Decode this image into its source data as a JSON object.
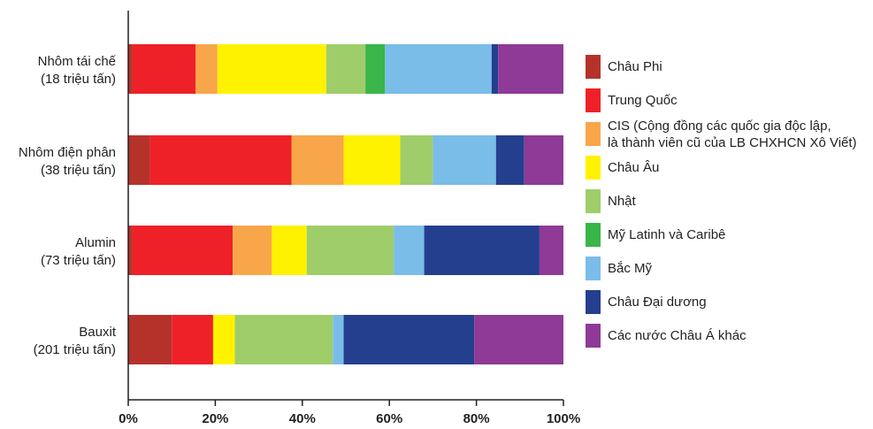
{
  "chart_data": {
    "type": "bar",
    "orientation": "horizontal",
    "stacked": true,
    "categories": [
      [
        "Nhôm tái chế",
        "(18 triệu tấn)"
      ],
      [
        "Nhôm điện phân",
        "(38 triệu tấn)"
      ],
      [
        "Alumin",
        "(73 triệu tấn)"
      ],
      [
        "Bauxit",
        "(201 triệu tấn)"
      ]
    ],
    "series": [
      {
        "name": "Châu Phi",
        "color": "#b5322b",
        "values": [
          1,
          5,
          1,
          10
        ]
      },
      {
        "name": "Trung Quốc",
        "color": "#ee2128",
        "values": [
          14.5,
          32.5,
          23,
          9.5
        ]
      },
      {
        "name": "CIS (Cộng đồng các quốc gia độc lập,\nlà thành viên cũ của LB CHXHCN Xô Viết)",
        "color": "#f9a64a",
        "values": [
          5,
          12,
          9,
          0
        ]
      },
      {
        "name": "Châu Âu",
        "color": "#fff200",
        "values": [
          25,
          13,
          8,
          5
        ]
      },
      {
        "name": "Nhật",
        "color": "#9fcd6a",
        "values": [
          9,
          7.5,
          20,
          22.5
        ]
      },
      {
        "name": "Mỹ Latinh và Caribê",
        "color": "#39b54a",
        "values": [
          4.5,
          0,
          0,
          0
        ]
      },
      {
        "name": "Bắc Mỹ",
        "color": "#7abde8",
        "values": [
          24.5,
          14.5,
          7,
          2.5
        ]
      },
      {
        "name": "Châu Đại dương",
        "color": "#253f8f",
        "values": [
          1.5,
          6.5,
          26.5,
          30
        ]
      },
      {
        "name": "Các nước Châu Á khác",
        "color": "#8e3a96",
        "values": [
          15,
          9,
          5.5,
          20.5
        ]
      }
    ],
    "x_ticks": [
      "0%",
      "20%",
      "40%",
      "60%",
      "80%",
      "100%"
    ],
    "xlim": [
      0,
      100
    ],
    "grid": false,
    "legend_position": "right"
  }
}
